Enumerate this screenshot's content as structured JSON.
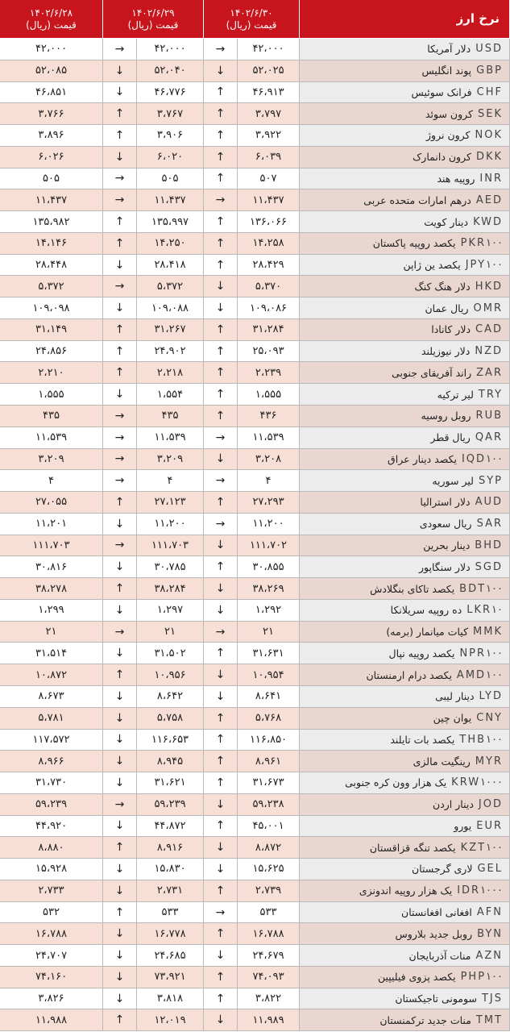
{
  "header": {
    "title": "نرخ ارز",
    "columns": [
      {
        "date": "۱۴۰۲/۶/۳۰",
        "unit": "قیمت (ریال)"
      },
      {
        "date": "۱۴۰۲/۶/۲۹",
        "unit": "قیمت (ریال)"
      },
      {
        "date": "۱۴۰۲/۶/۲۸",
        "unit": "قیمت (ریال)"
      }
    ]
  },
  "table": {
    "rows": [
      [
        "USD",
        "دلار آمریکا",
        "۴۲،۰۰۰",
        "→",
        "۴۲،۰۰۰",
        "→",
        "۴۲،۰۰۰"
      ],
      [
        "GBP",
        "پوند انگلیس",
        "۵۲،۰۲۵",
        "↓",
        "۵۲،۰۴۰",
        "↓",
        "۵۲،۰۸۵"
      ],
      [
        "CHF",
        "فرانک سوئیس",
        "۴۶،۹۱۳",
        "↑",
        "۴۶،۷۷۶",
        "↓",
        "۴۶،۸۵۱"
      ],
      [
        "SEK",
        "کرون سوئد",
        "۳،۷۹۷",
        "↑",
        "۳،۷۶۷",
        "↑",
        "۳،۷۶۶"
      ],
      [
        "NOK",
        "کرون نروژ",
        "۳،۹۲۲",
        "↑",
        "۳،۹۰۶",
        "↑",
        "۳،۸۹۶"
      ],
      [
        "DKK",
        "کرون دانمارک",
        "۶،۰۳۹",
        "↑",
        "۶،۰۲۰",
        "↓",
        "۶،۰۲۶"
      ],
      [
        "INR",
        "روپیه هند",
        "۵۰۷",
        "↑",
        "۵۰۵",
        "→",
        "۵۰۵"
      ],
      [
        "AED",
        "درهم امارات متحده عربی",
        "۱۱،۴۳۷",
        "→",
        "۱۱،۴۳۷",
        "→",
        "۱۱،۴۳۷"
      ],
      [
        "KWD",
        "دینار کویت",
        "۱۳۶،۰۶۶",
        "↑",
        "۱۳۵،۹۹۷",
        "↑",
        "۱۳۵،۹۸۲"
      ],
      [
        "PKR۱۰۰",
        "یکصد روپیه پاکستان",
        "۱۴،۲۵۸",
        "↑",
        "۱۴،۲۵۰",
        "↑",
        "۱۴،۱۴۶"
      ],
      [
        "JPY۱۰۰",
        "یکصد ین ژاپن",
        "۲۸،۴۲۹",
        "↑",
        "۲۸،۴۱۸",
        "↓",
        "۲۸،۴۴۸"
      ],
      [
        "HKD",
        "دلار هنگ کنگ",
        "۵،۳۷۰",
        "↓",
        "۵،۳۷۲",
        "→",
        "۵،۳۷۲"
      ],
      [
        "OMR",
        "ریال عمان",
        "۱۰۹،۰۸۶",
        "↓",
        "۱۰۹،۰۸۸",
        "↓",
        "۱۰۹،۰۹۸"
      ],
      [
        "CAD",
        "دلار کانادا",
        "۳۱،۲۸۴",
        "↑",
        "۳۱،۲۶۷",
        "↑",
        "۳۱،۱۴۹"
      ],
      [
        "NZD",
        "دلار نیوزیلند",
        "۲۵،۰۹۳",
        "↑",
        "۲۴،۹۰۲",
        "↑",
        "۲۴،۸۵۶"
      ],
      [
        "ZAR",
        "راند آفریقای جنوبی",
        "۲،۲۳۹",
        "↑",
        "۲،۲۱۸",
        "↑",
        "۲،۲۱۰"
      ],
      [
        "TRY",
        "لیر ترکیه",
        "۱،۵۵۵",
        "↑",
        "۱،۵۵۴",
        "↓",
        "۱،۵۵۵"
      ],
      [
        "RUB",
        "روبل روسیه",
        "۴۳۶",
        "↑",
        "۴۳۵",
        "→",
        "۴۳۵"
      ],
      [
        "QAR",
        "ریال قطر",
        "۱۱،۵۳۹",
        "→",
        "۱۱،۵۳۹",
        "→",
        "۱۱،۵۳۹"
      ],
      [
        "IQD۱۰۰",
        "یکصد دینار عراق",
        "۳،۲۰۸",
        "↓",
        "۳،۲۰۹",
        "→",
        "۳،۲۰۹"
      ],
      [
        "SYP",
        "لیر سوریه",
        "۴",
        "→",
        "۴",
        "→",
        "۴"
      ],
      [
        "AUD",
        "دلار استرالیا",
        "۲۷،۲۹۳",
        "↑",
        "۲۷،۱۲۳",
        "↑",
        "۲۷،۰۵۵"
      ],
      [
        "SAR",
        "ریال سعودی",
        "۱۱،۲۰۰",
        "→",
        "۱۱،۲۰۰",
        "↓",
        "۱۱،۲۰۱"
      ],
      [
        "BHD",
        "دینار بحرین",
        "۱۱۱،۷۰۲",
        "↓",
        "۱۱۱،۷۰۳",
        "→",
        "۱۱۱،۷۰۳"
      ],
      [
        "SGD",
        "دلار سنگاپور",
        "۳۰،۸۵۵",
        "↑",
        "۳۰،۷۸۵",
        "↓",
        "۳۰،۸۱۶"
      ],
      [
        "BDT۱۰۰",
        "یکصد تاکای بنگلادش",
        "۳۸،۲۶۹",
        "↓",
        "۳۸،۲۸۴",
        "↑",
        "۳۸،۲۷۸"
      ],
      [
        "LKR۱۰",
        "ده روپیه سریلانکا",
        "۱،۲۹۲",
        "↓",
        "۱،۲۹۷",
        "↓",
        "۱،۲۹۹"
      ],
      [
        "MMK",
        "کیات میانمار (برمه)",
        "۲۱",
        "→",
        "۲۱",
        "→",
        "۲۱"
      ],
      [
        "NPR۱۰۰",
        "یکصد روپیه نپال",
        "۳۱،۶۳۱",
        "↑",
        "۳۱،۵۰۲",
        "↓",
        "۳۱،۵۱۴"
      ],
      [
        "AMD۱۰۰",
        "یکصد درام ارمنستان",
        "۱۰،۹۵۴",
        "↓",
        "۱۰،۹۵۶",
        "↑",
        "۱۰،۸۷۲"
      ],
      [
        "LYD",
        "دینار لیبی",
        "۸،۶۴۱",
        "↓",
        "۸،۶۴۲",
        "↓",
        "۸،۶۷۳"
      ],
      [
        "CNY",
        "یوان چین",
        "۵،۷۶۸",
        "↑",
        "۵،۷۵۸",
        "↓",
        "۵،۷۸۱"
      ],
      [
        "THB۱۰۰",
        "یکصد بات تایلند",
        "۱۱۶،۸۵۰",
        "↑",
        "۱۱۶،۶۵۳",
        "↓",
        "۱۱۷،۵۷۲"
      ],
      [
        "MYR",
        "رینگیت مالزی",
        "۸،۹۶۱",
        "↑",
        "۸،۹۴۵",
        "↓",
        "۸،۹۶۶"
      ],
      [
        "KRW۱۰۰۰",
        "یک هزار وون کره جنوبی",
        "۳۱،۶۷۳",
        "↑",
        "۳۱،۶۲۱",
        "↓",
        "۳۱،۷۳۰"
      ],
      [
        "JOD",
        "دینار اردن",
        "۵۹،۲۳۸",
        "↓",
        "۵۹،۲۳۹",
        "→",
        "۵۹،۲۳۹"
      ],
      [
        "EUR",
        "یورو",
        "۴۵،۰۰۱",
        "↑",
        "۴۴،۸۷۲",
        "↓",
        "۴۴،۹۲۰"
      ],
      [
        "KZT۱۰۰",
        "یکصد تنگه قزاقستان",
        "۸،۸۷۲",
        "↓",
        "۸،۹۱۶",
        "↑",
        "۸،۸۸۰"
      ],
      [
        "GEL",
        "لاری گرجستان",
        "۱۵،۶۲۵",
        "↓",
        "۱۵،۸۳۰",
        "↓",
        "۱۵،۹۲۸"
      ],
      [
        "IDR۱۰۰۰",
        "یک هزار روپیه اندونزی",
        "۲،۷۳۹",
        "↑",
        "۲،۷۳۱",
        "↓",
        "۲،۷۳۳"
      ],
      [
        "AFN",
        "افغانی افغانستان",
        "۵۳۳",
        "→",
        "۵۳۳",
        "↑",
        "۵۳۲"
      ],
      [
        "BYN",
        "روبل جدید بلاروس",
        "۱۶،۷۸۸",
        "↑",
        "۱۶،۷۷۸",
        "↓",
        "۱۶،۷۸۸"
      ],
      [
        "AZN",
        "منات آذربایجان",
        "۲۴،۶۷۹",
        "↓",
        "۲۴،۶۸۵",
        "↓",
        "۲۴،۷۰۷"
      ],
      [
        "PHP۱۰۰",
        "یکصد پزوی فیلیپین",
        "۷۴،۰۹۳",
        "↑",
        "۷۳،۹۲۱",
        "↓",
        "۷۴،۱۶۰"
      ],
      [
        "TJS",
        "سومونی تاجیکستان",
        "۳،۸۲۲",
        "↑",
        "۳،۸۱۸",
        "↓",
        "۳،۸۲۶"
      ],
      [
        "TMT",
        "منات جدید ترکمنستان",
        "۱۱،۹۸۹",
        "↓",
        "۱۲،۰۱۹",
        "↑",
        "۱۱،۹۸۸"
      ]
    ]
  }
}
